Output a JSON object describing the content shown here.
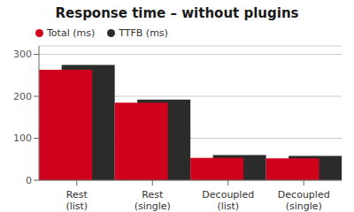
{
  "chart_data": {
    "type": "bar",
    "title": "Response time – without plugins",
    "categories": [
      "Rest\n(list)",
      "Rest\n(single)",
      "Decoupled\n(list)",
      "Decoupled\n(single)"
    ],
    "series": [
      {
        "name": "Total (ms)",
        "color": "#d0021b",
        "values": [
          263,
          185,
          53,
          52
        ]
      },
      {
        "name": "TTFB (ms)",
        "color": "#2b2b2b",
        "values": [
          275,
          192,
          60,
          58
        ]
      }
    ],
    "ylim": [
      0,
      320
    ],
    "yticks": [
      0,
      100,
      200,
      300
    ],
    "grid": true,
    "legend": "upper left"
  }
}
